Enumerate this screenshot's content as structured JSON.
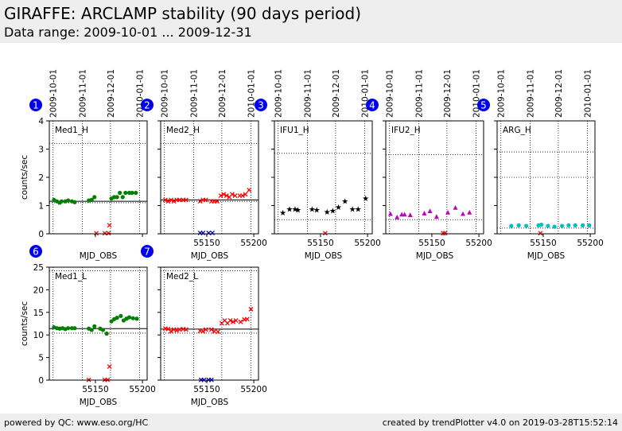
{
  "header": {
    "title": "GIRAFFE: ARCLAMP stability (90 days period)",
    "subtitle": "Data range: 2009-10-01 ... 2009-12-31"
  },
  "footer": {
    "left": "powered by QC: www.eso.org/HC",
    "right": "created by trendPlotter v4.0 on 2019-03-28T15:52:14"
  },
  "colors": {
    "green": "#008000",
    "red": "#ff0000",
    "blue": "#0000cc",
    "black": "#000000",
    "magenta": "#bf00bf",
    "cyan": "#00bfbf",
    "badge": "#0000ee"
  },
  "chart_data": [
    {
      "type": "scatter",
      "panel": "1",
      "label": "Med1_H",
      "xlabel": "MJD_OBS",
      "ylabel": "counts/sec",
      "xlim": [
        55101,
        55205
      ],
      "ylim": [
        0,
        4
      ],
      "xticks": [
        55150,
        55200
      ],
      "yticks": [
        0,
        1,
        2,
        3,
        4
      ],
      "show_xticklabels": false,
      "show_yticklabels": true,
      "top_dates": [
        "2009-10-01",
        "2009-11-01",
        "2009-12-01",
        "2010-01-01"
      ],
      "top_dates_x": [
        55105,
        55136,
        55166,
        55197
      ],
      "ref_line": 1.15,
      "ref_dotted": [
        1.1,
        3.2
      ],
      "series": [
        {
          "marker": "dot",
          "color": "green",
          "x": [
            55106,
            55109,
            55112,
            55114,
            55118,
            55121,
            55125,
            55128,
            55143,
            55146,
            55149,
            55167,
            55170,
            55173,
            55176,
            55179,
            55182,
            55186,
            55189,
            55193
          ],
          "y": [
            1.2,
            1.15,
            1.1,
            1.15,
            1.15,
            1.18,
            1.15,
            1.12,
            1.18,
            1.2,
            1.3,
            1.25,
            1.3,
            1.3,
            1.45,
            1.3,
            1.45,
            1.45,
            1.45,
            1.45
          ]
        },
        {
          "marker": "x",
          "color": "red",
          "x": [
            55151,
            55160,
            55164,
            55165
          ],
          "y": [
            0.02,
            0.02,
            0.02,
            0.3
          ]
        }
      ]
    },
    {
      "type": "scatter",
      "panel": "2",
      "label": "Med2_H",
      "xlabel": "MJD_OBS",
      "ylabel": "",
      "xlim": [
        55101,
        55205
      ],
      "ylim": [
        0,
        4
      ],
      "xticks": [
        55150,
        55200
      ],
      "yticks": [
        0,
        1,
        2,
        3,
        4
      ],
      "show_xticklabels": true,
      "show_yticklabels": false,
      "top_dates": [
        "2009-10-01",
        "2009-11-01",
        "2009-12-01",
        "2010-01-01"
      ],
      "top_dates_x": [
        55105,
        55136,
        55166,
        55197
      ],
      "ref_line": 1.2,
      "ref_dotted": [
        1.15,
        3.2
      ],
      "series": [
        {
          "marker": "x",
          "color": "red",
          "x": [
            55106,
            55109,
            55112,
            55115,
            55118,
            55121,
            55125,
            55128,
            55143,
            55146,
            55149,
            55155,
            55158,
            55161,
            55165,
            55168,
            55171,
            55174,
            55177,
            55180,
            55185,
            55188,
            55191,
            55195
          ],
          "y": [
            1.2,
            1.15,
            1.2,
            1.15,
            1.2,
            1.2,
            1.2,
            1.2,
            1.15,
            1.2,
            1.2,
            1.15,
            1.15,
            1.15,
            1.35,
            1.4,
            1.35,
            1.3,
            1.4,
            1.35,
            1.35,
            1.35,
            1.4,
            1.55
          ]
        },
        {
          "marker": "x",
          "color": "blue",
          "x": [
            55143,
            55146,
            55152,
            55156
          ],
          "y": [
            0.03,
            0.03,
            0.03,
            0.03
          ]
        }
      ]
    },
    {
      "type": "scatter",
      "panel": "3",
      "label": "IFU1_H",
      "xlabel": "MJD_OBS",
      "ylabel": "",
      "xlim": [
        55101,
        55205
      ],
      "ylim": [
        0,
        4
      ],
      "xticks": [
        55150,
        55200
      ],
      "yticks": [
        0,
        1,
        2,
        3,
        4
      ],
      "show_xticklabels": true,
      "show_yticklabels": false,
      "top_dates": [
        "2009-10-01",
        "2009-11-01",
        "2009-12-01",
        "2010-01-01"
      ],
      "top_dates_x": [
        55105,
        55136,
        55166,
        55197
      ],
      "ref_line": null,
      "ref_dotted": [
        0.5,
        2.85
      ],
      "series": [
        {
          "marker": "star",
          "color": "black",
          "x": [
            55110,
            55117,
            55123,
            55126,
            55141,
            55146,
            55157,
            55163,
            55169,
            55176,
            55184,
            55190,
            55198
          ],
          "y": [
            0.75,
            0.88,
            0.88,
            0.85,
            0.88,
            0.85,
            0.78,
            0.82,
            0.95,
            1.15,
            0.88,
            0.88,
            1.25
          ]
        },
        {
          "marker": "x",
          "color": "red",
          "x": [
            55155
          ],
          "y": [
            0.02
          ]
        }
      ]
    },
    {
      "type": "scatter",
      "panel": "4",
      "label": "IFU2_H",
      "xlabel": "MJD_OBS",
      "ylabel": "",
      "xlim": [
        55101,
        55205
      ],
      "ylim": [
        0,
        4
      ],
      "xticks": [
        55150,
        55200
      ],
      "yticks": [
        0,
        1,
        2,
        3,
        4
      ],
      "show_xticklabels": true,
      "show_yticklabels": false,
      "top_dates": [
        "2009-10-01",
        "2009-11-01",
        "2009-12-01",
        "2010-01-01"
      ],
      "top_dates_x": [
        55105,
        55136,
        55166,
        55197
      ],
      "ref_line": null,
      "ref_dotted": [
        0.5,
        2.8
      ],
      "series": [
        {
          "marker": "triangle",
          "color": "magenta",
          "x": [
            55106,
            55113,
            55118,
            55121,
            55127,
            55142,
            55148,
            55155,
            55167,
            55175,
            55183,
            55190
          ],
          "y": [
            0.7,
            0.58,
            0.68,
            0.68,
            0.66,
            0.72,
            0.8,
            0.6,
            0.75,
            0.92,
            0.7,
            0.75
          ]
        },
        {
          "marker": "x",
          "color": "red",
          "x": [
            55162,
            55164
          ],
          "y": [
            0.02,
            0.02
          ]
        }
      ]
    },
    {
      "type": "scatter",
      "panel": "5",
      "label": "ARG_H",
      "xlabel": "MJD_OBS",
      "ylabel": "",
      "xlim": [
        55101,
        55205
      ],
      "ylim": [
        0,
        4
      ],
      "xticks": [
        55150,
        55200
      ],
      "yticks": [
        0,
        1,
        2,
        3,
        4
      ],
      "show_xticklabels": true,
      "show_yticklabels": false,
      "top_dates": [
        "2009-10-01",
        "2009-11-01",
        "2009-12-01",
        "2010-01-01"
      ],
      "top_dates_x": [
        55105,
        55136,
        55166,
        55197
      ],
      "ref_line": null,
      "ref_dotted": [
        0.2,
        2.0,
        2.9
      ],
      "series": [
        {
          "marker": "dot",
          "color": "cyan",
          "x": [
            55116,
            55124,
            55132,
            55145,
            55148,
            55155,
            55162,
            55170,
            55177,
            55184,
            55192,
            55199
          ],
          "y": [
            0.28,
            0.3,
            0.28,
            0.3,
            0.32,
            0.28,
            0.25,
            0.28,
            0.3,
            0.3,
            0.3,
            0.3
          ]
        },
        {
          "marker": "x",
          "color": "red",
          "x": [
            55147
          ],
          "y": [
            0.02
          ]
        }
      ]
    },
    {
      "type": "scatter",
      "panel": "6",
      "label": "Med1_L",
      "xlabel": "MJD_OBS",
      "ylabel": "counts/sec",
      "xlim": [
        55101,
        55205
      ],
      "ylim": [
        0,
        25
      ],
      "xticks": [
        55150,
        55200
      ],
      "yticks": [
        0,
        5,
        10,
        15,
        20,
        25
      ],
      "show_xticklabels": true,
      "show_yticklabels": true,
      "top_dates": [],
      "top_dates_x": [
        55105,
        55136,
        55166,
        55197
      ],
      "ref_line": 11.4,
      "ref_dotted": [
        10.4,
        24.2
      ],
      "series": [
        {
          "marker": "dot",
          "color": "green",
          "x": [
            55106,
            55109,
            55112,
            55115,
            55118,
            55121,
            55125,
            55128,
            55143,
            55146,
            55149,
            55155,
            55158,
            55162,
            55167,
            55170,
            55173,
            55177,
            55180,
            55183,
            55186,
            55190,
            55194
          ],
          "y": [
            11.7,
            11.5,
            11.4,
            11.5,
            11.3,
            11.5,
            11.5,
            11.5,
            11.4,
            11.1,
            11.9,
            11.4,
            11.1,
            10.3,
            13.0,
            13.5,
            13.8,
            14.2,
            13.2,
            13.6,
            13.9,
            13.7,
            13.6
          ]
        },
        {
          "marker": "x",
          "color": "red",
          "x": [
            55143,
            55160,
            55163,
            55165
          ],
          "y": [
            0.05,
            0.05,
            0.05,
            3.0
          ]
        }
      ]
    },
    {
      "type": "scatter",
      "panel": "7",
      "label": "Med2_L",
      "xlabel": "MJD_OBS",
      "ylabel": "",
      "xlim": [
        55101,
        55205
      ],
      "ylim": [
        0,
        25
      ],
      "xticks": [
        55150,
        55200
      ],
      "yticks": [
        0,
        5,
        10,
        15,
        20,
        25
      ],
      "show_xticklabels": true,
      "show_yticklabels": false,
      "top_dates": [],
      "top_dates_x": [
        55105,
        55136,
        55166,
        55197
      ],
      "ref_line": 11.3,
      "ref_dotted": [
        10.4,
        24.2
      ],
      "series": [
        {
          "marker": "x",
          "color": "red",
          "x": [
            55106,
            55109,
            55112,
            55115,
            55118,
            55121,
            55125,
            55128,
            55143,
            55146,
            55149,
            55155,
            55158,
            55162,
            55166,
            55169,
            55172,
            55175,
            55178,
            55181,
            55186,
            55190,
            55193,
            55197
          ],
          "y": [
            11.4,
            11.3,
            10.8,
            11.2,
            11.0,
            11.2,
            11.3,
            11.2,
            10.9,
            10.8,
            11.2,
            11.2,
            10.8,
            10.7,
            12.6,
            13.2,
            12.6,
            13.2,
            12.9,
            13.2,
            12.9,
            13.4,
            13.5,
            15.7
          ]
        },
        {
          "marker": "x",
          "color": "blue",
          "x": [
            55144,
            55147,
            55152,
            55155
          ],
          "y": [
            0.05,
            0.05,
            0.05,
            0.05
          ]
        }
      ]
    }
  ]
}
